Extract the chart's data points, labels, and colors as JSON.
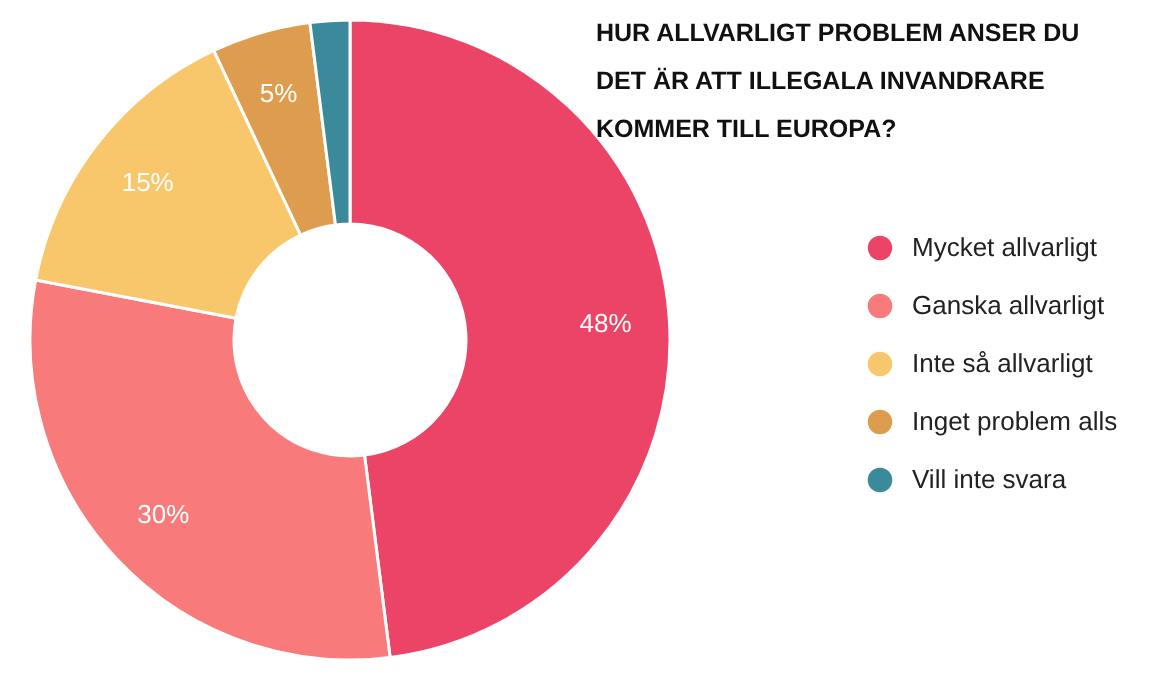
{
  "chart_data": {
    "type": "donut",
    "title": "HUR ALLVARLIGT PROBLEM ANSER DU DET ÄR ATT ILLEGALA INVANDRARE KOMMER TILL EUROPA?",
    "categories": [
      "Mycket allvarligt",
      "Ganska allvarligt",
      "Inte så allvarligt",
      "Inget problem alls",
      "Vill inte svara"
    ],
    "values": [
      48,
      30,
      15,
      5,
      2
    ],
    "colors": [
      "#ec4466",
      "#f87a7a",
      "#f9c76b",
      "#de9d4e",
      "#3a8a9c"
    ],
    "value_labels": [
      "48%",
      "30%",
      "15%",
      "5%",
      null
    ],
    "legend": "right"
  }
}
